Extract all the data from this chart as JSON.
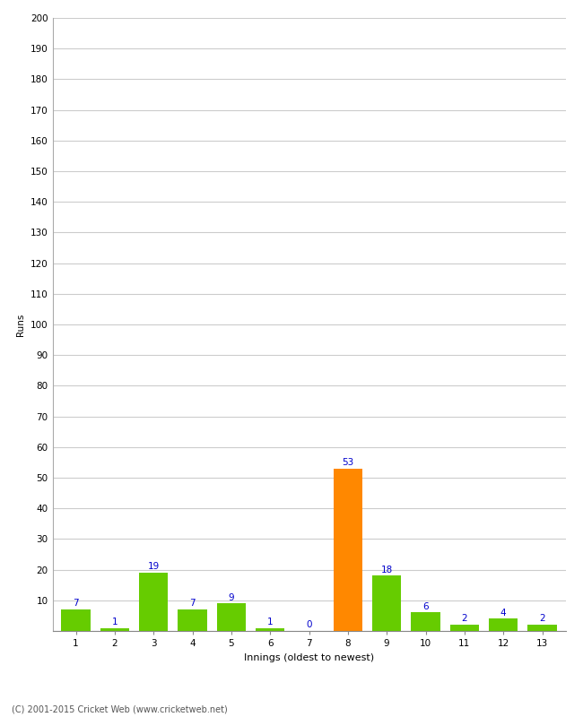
{
  "xlabel": "Innings (oldest to newest)",
  "ylabel": "Runs",
  "categories": [
    1,
    2,
    3,
    4,
    5,
    6,
    7,
    8,
    9,
    10,
    11,
    12,
    13
  ],
  "values": [
    7,
    1,
    19,
    7,
    9,
    1,
    0,
    53,
    18,
    6,
    2,
    4,
    2
  ],
  "bar_colors": [
    "#66cc00",
    "#66cc00",
    "#66cc00",
    "#66cc00",
    "#66cc00",
    "#66cc00",
    "#66cc00",
    "#ff8800",
    "#66cc00",
    "#66cc00",
    "#66cc00",
    "#66cc00",
    "#66cc00"
  ],
  "ylim": [
    0,
    200
  ],
  "yticks": [
    0,
    10,
    20,
    30,
    40,
    50,
    60,
    70,
    80,
    90,
    100,
    110,
    120,
    130,
    140,
    150,
    160,
    170,
    180,
    190,
    200
  ],
  "label_color": "#0000cc",
  "label_fontsize": 7.5,
  "axis_label_fontsize": 8,
  "tick_fontsize": 7.5,
  "ylabel_fontsize": 7.5,
  "background_color": "#ffffff",
  "grid_color": "#cccccc",
  "footer_text": "(C) 2001-2015 Cricket Web (www.cricketweb.net)"
}
